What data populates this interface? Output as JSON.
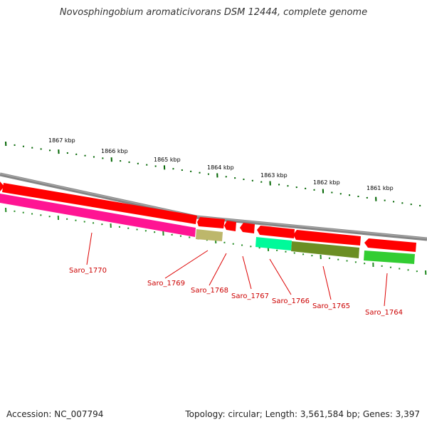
{
  "title": "Novosphingobium aromaticivorans DSM 12444, complete genome",
  "footer": {
    "accession_label": "Accession: NC_007794",
    "summary_label": "Topology: circular; Length: 3,561,584 bp; Genes: 3,397"
  },
  "scale_labels": [
    "1867 kbp",
    "1866 kbp",
    "1865 kbp",
    "1864 kbp",
    "1863 kbp",
    "1862 kbp",
    "1861 kbp"
  ],
  "genes": [
    {
      "name": "Saro_1770",
      "strand": "reverse",
      "color": "#ff1493"
    },
    {
      "name": "Saro_1769",
      "strand": "reverse",
      "color": "#bdb76b"
    },
    {
      "name": "Saro_1768",
      "strand": "forward",
      "color": "#ff0000"
    },
    {
      "name": "Saro_1767",
      "strand": "forward",
      "color": "#ff0000"
    },
    {
      "name": "Saro_1766",
      "strand": "reverse",
      "color": "#00fa9a"
    },
    {
      "name": "Saro_1765",
      "strand": "reverse",
      "color": "#6b8e23"
    },
    {
      "name": "Saro_1764",
      "strand": "reverse",
      "color": "#32cd32"
    }
  ],
  "colors": {
    "backbone": "#808080",
    "cds_forward": "#ff0000",
    "tick_forward": "#006400",
    "tick_reverse": "#228b22",
    "label": "#cc0000"
  }
}
